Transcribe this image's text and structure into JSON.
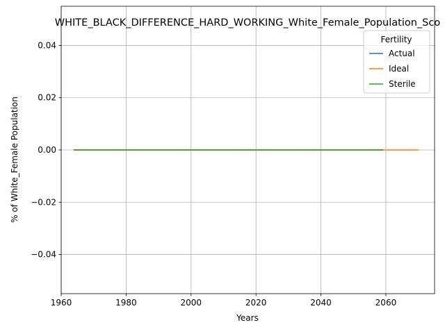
{
  "chart_data": {
    "type": "line",
    "title": "WHITE_BLACK_DIFFERENCE_HARD_WORKING_White_Female_Population_Sco",
    "xlabel": "Years",
    "ylabel": "% of White_Female Population",
    "xlim": [
      1960,
      2075
    ],
    "ylim": [
      -0.055,
      0.055
    ],
    "xticks": [
      1960,
      1980,
      2000,
      2020,
      2040,
      2060
    ],
    "yticks": [
      -0.04,
      -0.02,
      0.0,
      0.02,
      0.04
    ],
    "ytick_labels": [
      "−0.04",
      "−0.02",
      "0.00",
      "0.02",
      "0.04"
    ],
    "grid": true,
    "legend": {
      "title": "Fertility",
      "placement": "top-right"
    },
    "series": [
      {
        "name": "Actual",
        "color": "#1f77b4",
        "x": [
          1964,
          2059
        ],
        "y": [
          0.0,
          0.0
        ]
      },
      {
        "name": "Ideal",
        "color": "#ff7f0e",
        "x": [
          1964,
          2070
        ],
        "y": [
          0.0,
          0.0
        ]
      },
      {
        "name": "Sterile",
        "color": "#2ca02c",
        "x": [
          1964,
          2059
        ],
        "y": [
          0.0,
          0.0
        ]
      }
    ]
  }
}
